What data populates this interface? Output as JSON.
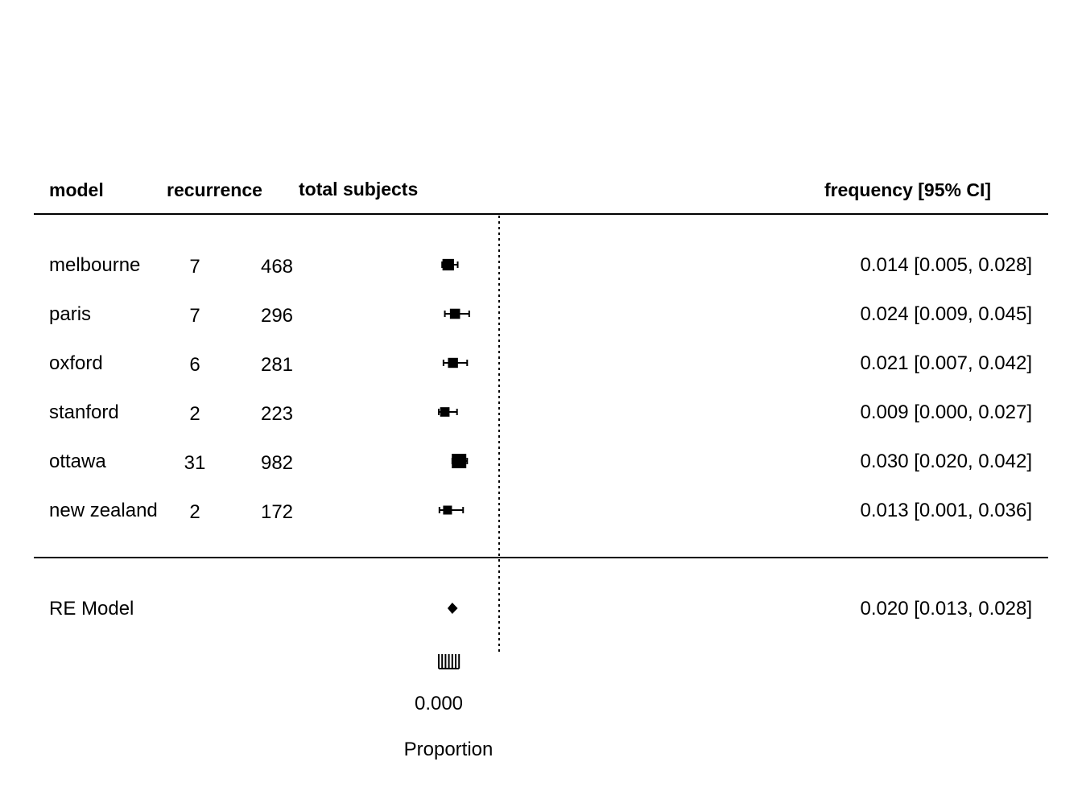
{
  "headers": {
    "model": "model",
    "recurrence": "recurrence",
    "total": "total subjects",
    "freq": "frequency [95% CI]"
  },
  "chart_data": {
    "type": "forest",
    "xlabel": "Proportion",
    "xtick_labels": [
      "0.000"
    ],
    "studies": [
      {
        "model": "melbourne",
        "recurrence": "7",
        "total": "468",
        "est": 0.014,
        "lo": 0.005,
        "hi": 0.028,
        "label": "0.014 [0.005, 0.028]"
      },
      {
        "model": "paris",
        "recurrence": "7",
        "total": "296",
        "est": 0.024,
        "lo": 0.009,
        "hi": 0.045,
        "label": "0.024 [0.009, 0.045]"
      },
      {
        "model": "oxford",
        "recurrence": "6",
        "total": "281",
        "est": 0.021,
        "lo": 0.007,
        "hi": 0.042,
        "label": "0.021 [0.007, 0.042]"
      },
      {
        "model": "stanford",
        "recurrence": "2",
        "total": "223",
        "est": 0.009,
        "lo": 0.0,
        "hi": 0.027,
        "label": "0.009 [0.000, 0.027]"
      },
      {
        "model": "ottawa",
        "recurrence": "31",
        "total": "982",
        "est": 0.03,
        "lo": 0.02,
        "hi": 0.042,
        "label": "0.030 [0.020, 0.042]"
      },
      {
        "model": "new zealand",
        "recurrence": "2",
        "total": "172",
        "est": 0.013,
        "lo": 0.001,
        "hi": 0.036,
        "label": "0.013 [0.001, 0.036]"
      }
    ],
    "summary": {
      "model": "RE Model",
      "est": 0.02,
      "lo": 0.013,
      "hi": 0.028,
      "label": "0.020 [0.013, 0.028]"
    }
  }
}
